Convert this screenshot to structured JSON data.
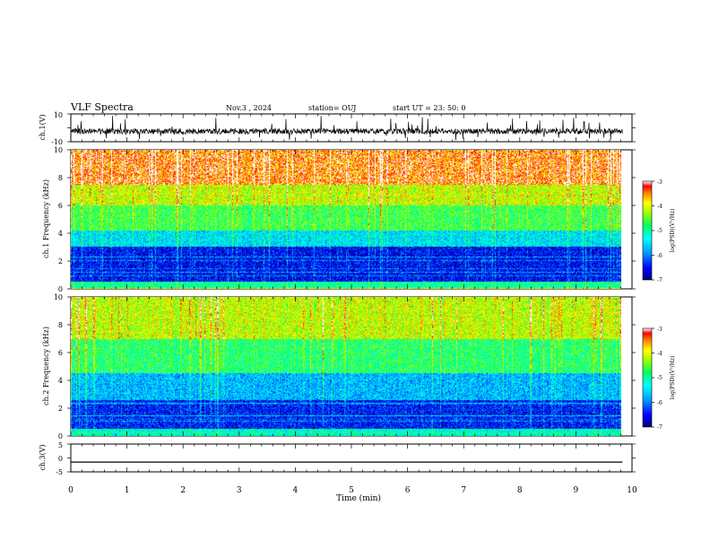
{
  "header": {
    "title": "VLF Spectra",
    "date": "Nov.3 , 2024",
    "station": "station= OUJ",
    "start_time": "start UT = 23: 50: 0"
  },
  "chart_data": [
    {
      "type": "line",
      "name": "ch1-waveform",
      "ylabel": "ch.1(V)",
      "ylim": [
        -10,
        10
      ],
      "yticks": [
        "10",
        "-10"
      ],
      "xlim": [
        0,
        10
      ],
      "data_extent_min": [
        0,
        9.83
      ],
      "mean": -2.5,
      "noise_band": [
        -4.5,
        -0.5
      ],
      "spike_range": [
        -9,
        9
      ]
    },
    {
      "type": "heatmap",
      "name": "ch1-spectrogram",
      "ylabel": "ch.1 Frequency (kHz)",
      "ylim": [
        0,
        10
      ],
      "yticks": [
        "0",
        "2",
        "4",
        "6",
        "8",
        "10"
      ],
      "xlim": [
        0,
        10
      ],
      "data_extent_min": [
        0,
        9.83
      ],
      "colorbar": {
        "label": "log(PSD)(V²/Hz)",
        "range": [
          -7,
          -3
        ],
        "ticks": [
          "-3",
          "-4",
          "-5",
          "-6",
          "-7"
        ]
      },
      "band_profile": [
        {
          "freq_khz": [
            0,
            0.5
          ],
          "level": 0.5
        },
        {
          "freq_khz": [
            0.5,
            3.0
          ],
          "level": 0.12
        },
        {
          "freq_khz": [
            3.0,
            4.2
          ],
          "level": 0.38
        },
        {
          "freq_khz": [
            4.2,
            6.0
          ],
          "level": 0.58
        },
        {
          "freq_khz": [
            6.0,
            7.5
          ],
          "level": 0.72
        },
        {
          "freq_khz": [
            7.5,
            10
          ],
          "level": 0.9
        }
      ]
    },
    {
      "type": "heatmap",
      "name": "ch2-spectrogram",
      "ylabel": "ch.2 Frequency (kHz)",
      "ylim": [
        0,
        10
      ],
      "yticks": [
        "0",
        "2",
        "4",
        "6",
        "8",
        "10"
      ],
      "xlim": [
        0,
        10
      ],
      "data_extent_min": [
        0,
        9.83
      ],
      "colorbar": {
        "label": "log(PSD)(V²/Hz)",
        "range": [
          -7,
          -3
        ],
        "ticks": [
          "-3",
          "-4",
          "-5",
          "-6",
          "-7"
        ]
      },
      "band_profile": [
        {
          "freq_khz": [
            0,
            0.5
          ],
          "level": 0.45
        },
        {
          "freq_khz": [
            0.5,
            2.6
          ],
          "level": 0.14
        },
        {
          "freq_khz": [
            2.6,
            4.5
          ],
          "level": 0.32
        },
        {
          "freq_khz": [
            4.5,
            7.0
          ],
          "level": 0.55
        },
        {
          "freq_khz": [
            7.0,
            10
          ],
          "level": 0.72
        }
      ]
    },
    {
      "type": "line",
      "name": "ch3-waveform",
      "ylabel": "ch.3(V)",
      "ylim": [
        -5,
        5
      ],
      "yticks": [
        "5",
        "0",
        "-5"
      ],
      "xlim": [
        0,
        10
      ],
      "data_extent_min": [
        0,
        9.83
      ],
      "value": -1.5
    }
  ],
  "x_axis": {
    "label": "Time (min)",
    "range": [
      0,
      10
    ],
    "ticks": [
      "0",
      "1",
      "2",
      "3",
      "4",
      "5",
      "6",
      "7",
      "8",
      "9",
      "10"
    ]
  },
  "colors": {
    "colormap": [
      "#000080",
      "#0000ff",
      "#0080ff",
      "#00ffff",
      "#00ff80",
      "#80ff00",
      "#ffff00",
      "#ff8000",
      "#ff0000"
    ]
  }
}
